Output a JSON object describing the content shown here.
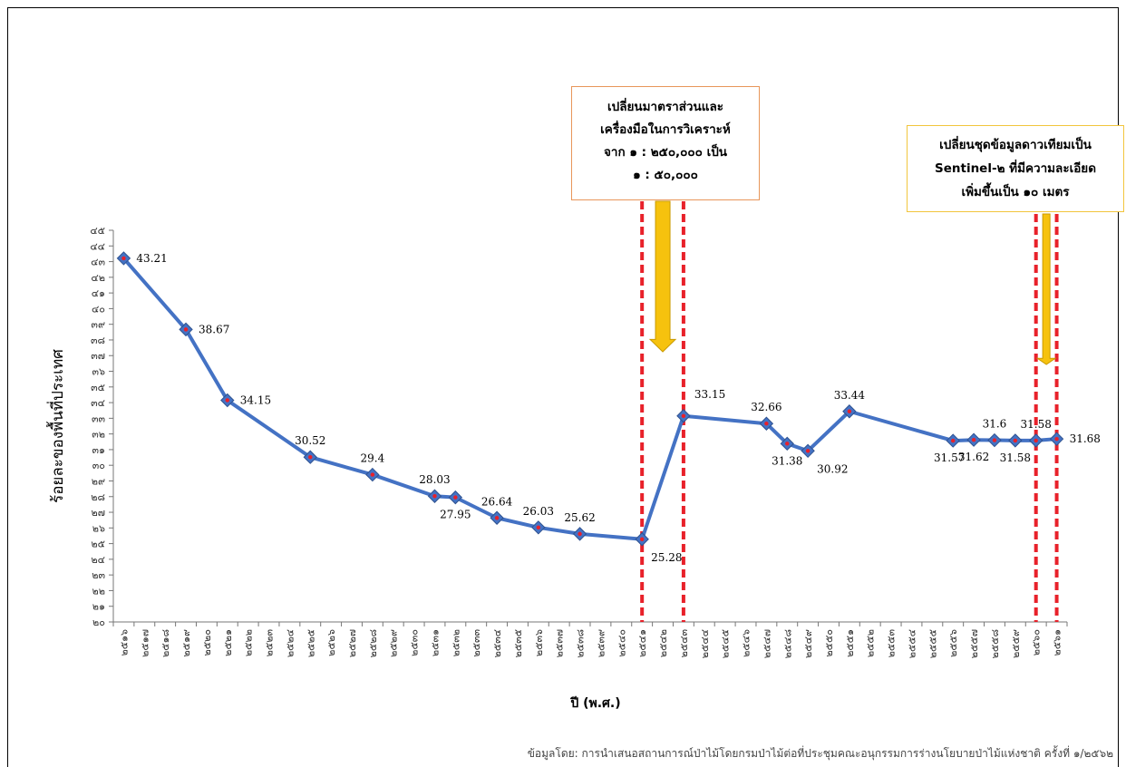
{
  "chart_data": {
    "type": "line",
    "ylabel": "ร้อยละของพื้นที่ประเทศ",
    "xlabel": "ปี (พ.ศ.)",
    "ylim": [
      20,
      45
    ],
    "yticks": [
      "๒๐",
      "๒๑",
      "๒๒",
      "๒๓",
      "๒๔",
      "๒๕",
      "๒๖",
      "๒๗",
      "๒๘",
      "๒๙",
      "๓๐",
      "๓๑",
      "๓๒",
      "๓๓",
      "๓๔",
      "๓๕",
      "๓๖",
      "๓๗",
      "๓๘",
      "๓๙",
      "๔๐",
      "๔๑",
      "๔๒",
      "๔๓",
      "๔๔",
      "๔๕"
    ],
    "categories": [
      "๒๕๑๖",
      "๒๕๑๗",
      "๒๕๑๘",
      "๒๕๑๙",
      "๒๕๒๐",
      "๒๕๒๑",
      "๒๕๒๒",
      "๒๕๒๓",
      "๒๕๒๔",
      "๒๕๒๕",
      "๒๕๒๖",
      "๒๕๒๗",
      "๒๕๒๘",
      "๒๕๒๙",
      "๒๕๓๐",
      "๒๕๓๑",
      "๒๕๓๒",
      "๒๕๓๓",
      "๒๕๓๔",
      "๒๕๓๕",
      "๒๕๓๖",
      "๒๕๓๗",
      "๒๕๓๘",
      "๒๕๓๙",
      "๒๕๔๐",
      "๒๕๔๑",
      "๒๕๔๒",
      "๒๕๔๓",
      "๒๕๔๔",
      "๒๕๔๕",
      "๒๕๔๖",
      "๒๕๔๗",
      "๒๕๔๘",
      "๒๕๔๙",
      "๒๕๕๐",
      "๒๕๕๑",
      "๒๕๕๒",
      "๒๕๕๓",
      "๒๕๕๔",
      "๒๕๕๕",
      "๒๕๕๖",
      "๒๕๕๗",
      "๒๕๕๘",
      "๒๕๕๙",
      "๒๕๖๐",
      "๒๕๖๑"
    ],
    "series": [
      {
        "points": [
          {
            "cat": 0,
            "value": 43.21,
            "label": "43.21",
            "pos": "right"
          },
          {
            "cat": 3,
            "value": 38.67,
            "label": "38.67",
            "pos": "right"
          },
          {
            "cat": 5,
            "value": 34.15,
            "label": "34.15",
            "pos": "right"
          },
          {
            "cat": 9,
            "value": 30.52,
            "label": "30.52",
            "pos": "above"
          },
          {
            "cat": 12,
            "value": 29.4,
            "label": "29.4",
            "pos": "above"
          },
          {
            "cat": 15,
            "value": 28.03,
            "label": "28.03",
            "pos": "above"
          },
          {
            "cat": 16,
            "value": 27.95,
            "label": "27.95",
            "pos": "below"
          },
          {
            "cat": 18,
            "value": 26.64,
            "label": "26.64",
            "pos": "above"
          },
          {
            "cat": 20,
            "value": 26.03,
            "label": "26.03",
            "pos": "above"
          },
          {
            "cat": 22,
            "value": 25.62,
            "label": "25.62",
            "pos": "above"
          },
          {
            "cat": 25,
            "value": 25.28,
            "label": "25.28",
            "pos": "belowright"
          },
          {
            "cat": 27,
            "value": 33.15,
            "label": "33.15",
            "pos": "aboveright"
          },
          {
            "cat": 31,
            "value": 32.66,
            "label": "32.66",
            "pos": "above"
          },
          {
            "cat": 32,
            "value": 31.38,
            "label": "31.38",
            "pos": "below"
          },
          {
            "cat": 33,
            "value": 30.92,
            "label": "30.92",
            "pos": "belowright"
          },
          {
            "cat": 35,
            "value": 33.44,
            "label": "33.44",
            "pos": "above"
          },
          {
            "cat": 40,
            "value": 31.57,
            "label": "31.57",
            "pos": "belowleft"
          },
          {
            "cat": 41,
            "value": 31.62,
            "label": "31.62",
            "pos": "below"
          },
          {
            "cat": 42,
            "value": 31.6,
            "label": "31.6",
            "pos": "above"
          },
          {
            "cat": 43,
            "value": 31.58,
            "label": "31.58",
            "pos": "below"
          },
          {
            "cat": 44,
            "value": 31.58,
            "label": "31.58",
            "pos": "above"
          },
          {
            "cat": 45,
            "value": 31.68,
            "label": "31.68",
            "pos": "right"
          }
        ]
      }
    ],
    "marker_lines_at": [
      25,
      27,
      44,
      45
    ],
    "colors": {
      "line": "#4472c4",
      "marker_center": "#e8212a",
      "marker_lines": "#e8212a",
      "arrow": "#f6c20e"
    },
    "grid": false
  },
  "annotations": {
    "box1": [
      "เปลี่ยนมาตราส่วนและ",
      "เครื่องมือในการวิเคราะห์",
      "จาก ๑ : ๒๕๐,๐๐๐ เป็น",
      "๑ : ๕๐,๐๐๐"
    ],
    "box2": [
      "เปลี่ยนชุดข้อมูลดาวเทียมเป็น",
      "Sentinel-๒ ที่มีความละเอียด",
      "เพิ่มขึ้นเป็น ๑๐ เมตร"
    ]
  },
  "source_note": "ข้อมูลโดย: การนำเสนอสถานการณ์ป่าไม้โดยกรมป่าไม้ต่อที่ประชุมคณะอนุกรรมการร่างนโยบายป่าไม้แห่งชาติ ครั้งที่ ๑/๒๕๖๒"
}
